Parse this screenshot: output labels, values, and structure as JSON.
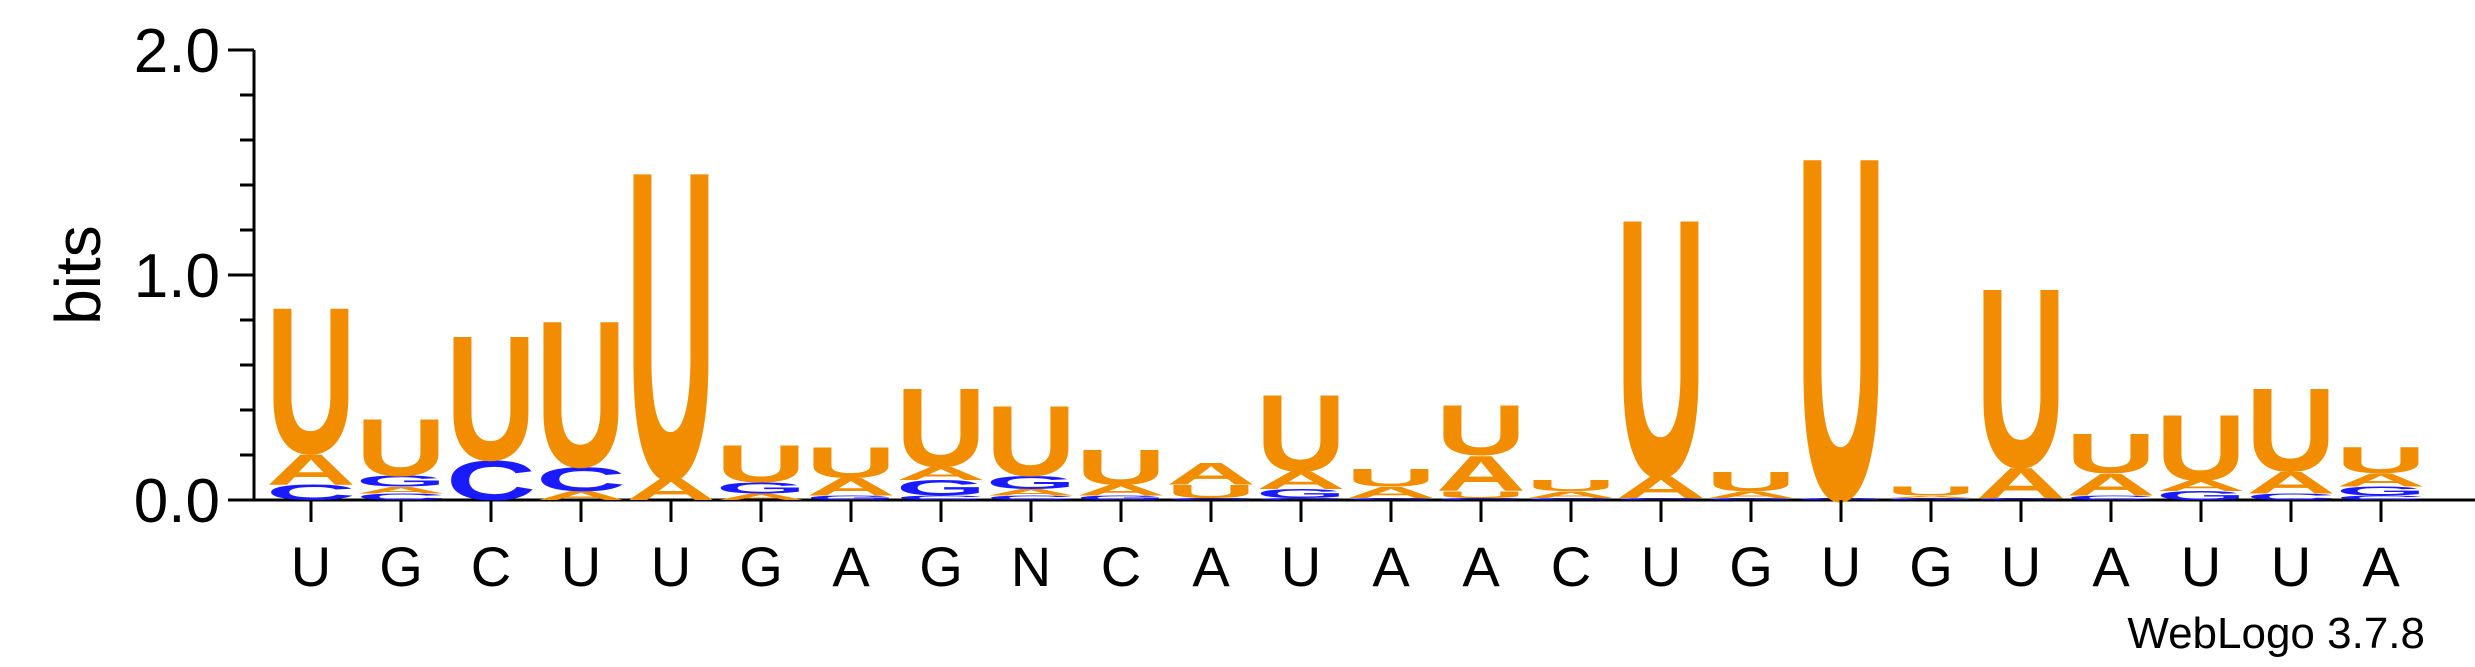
{
  "chart_data": {
    "type": "sequence-logo",
    "ylabel": "bits",
    "ylim": [
      0,
      2.0
    ],
    "yticks": [
      "0.0",
      "1.0",
      "2.0"
    ],
    "credit": "WebLogo 3.7.8",
    "colors": {
      "U": "#f28c00",
      "A": "#f28c00",
      "C": "#1a1aff",
      "G": "#1a1aff"
    },
    "positions": [
      {
        "label": "U",
        "stack": [
          {
            "letter": "C",
            "bits": 0.07
          },
          {
            "letter": "A",
            "bits": 0.14
          },
          {
            "letter": "U",
            "bits": 0.67
          }
        ]
      },
      {
        "label": "G",
        "stack": [
          {
            "letter": "C",
            "bits": 0.03
          },
          {
            "letter": "A",
            "bits": 0.03
          },
          {
            "letter": "G",
            "bits": 0.05
          },
          {
            "letter": "U",
            "bits": 0.26
          }
        ]
      },
      {
        "label": "C",
        "stack": [
          {
            "letter": "C",
            "bits": 0.18
          },
          {
            "letter": "U",
            "bits": 0.57
          }
        ]
      },
      {
        "label": "U",
        "stack": [
          {
            "letter": "A",
            "bits": 0.04
          },
          {
            "letter": "C",
            "bits": 0.11
          },
          {
            "letter": "U",
            "bits": 0.67
          }
        ]
      },
      {
        "label": "U",
        "stack": [
          {
            "letter": "A",
            "bits": 0.1
          },
          {
            "letter": "U",
            "bits": 1.41
          }
        ]
      },
      {
        "label": "G",
        "stack": [
          {
            "letter": "A",
            "bits": 0.03
          },
          {
            "letter": "G",
            "bits": 0.05
          },
          {
            "letter": "U",
            "bits": 0.17
          }
        ]
      },
      {
        "label": "A",
        "stack": [
          {
            "letter": "G",
            "bits": 0.02
          },
          {
            "letter": "A",
            "bits": 0.08
          },
          {
            "letter": "U",
            "bits": 0.14
          }
        ]
      },
      {
        "label": "G",
        "stack": [
          {
            "letter": "C",
            "bits": 0.02
          },
          {
            "letter": "G",
            "bits": 0.07
          },
          {
            "letter": "A",
            "bits": 0.06
          },
          {
            "letter": "U",
            "bits": 0.36
          }
        ]
      },
      {
        "label": "N",
        "stack": [
          {
            "letter": "C",
            "bits": 0.02
          },
          {
            "letter": "A",
            "bits": 0.03
          },
          {
            "letter": "G",
            "bits": 0.06
          },
          {
            "letter": "U",
            "bits": 0.32
          }
        ]
      },
      {
        "label": "C",
        "stack": [
          {
            "letter": "G",
            "bits": 0.02
          },
          {
            "letter": "A",
            "bits": 0.05
          },
          {
            "letter": "U",
            "bits": 0.16
          }
        ]
      },
      {
        "label": "A",
        "stack": [
          {
            "letter": "C",
            "bits": 0.01
          },
          {
            "letter": "U",
            "bits": 0.06
          },
          {
            "letter": "A",
            "bits": 0.1
          }
        ]
      },
      {
        "label": "U",
        "stack": [
          {
            "letter": "C",
            "bits": 0.01
          },
          {
            "letter": "G",
            "bits": 0.04
          },
          {
            "letter": "A",
            "bits": 0.08
          },
          {
            "letter": "U",
            "bits": 0.35
          }
        ]
      },
      {
        "label": "A",
        "stack": [
          {
            "letter": "C",
            "bits": 0.01
          },
          {
            "letter": "A",
            "bits": 0.05
          },
          {
            "letter": "U",
            "bits": 0.08
          }
        ]
      },
      {
        "label": "A",
        "stack": [
          {
            "letter": "C",
            "bits": 0.01
          },
          {
            "letter": "U",
            "bits": 0.03
          },
          {
            "letter": "A",
            "bits": 0.16
          },
          {
            "letter": "U",
            "bits": 0.23
          }
        ]
      },
      {
        "label": "C",
        "stack": [
          {
            "letter": "C",
            "bits": 0.01
          },
          {
            "letter": "A",
            "bits": 0.03
          },
          {
            "letter": "U",
            "bits": 0.05
          }
        ]
      },
      {
        "label": "U",
        "stack": [
          {
            "letter": "C",
            "bits": 0.01
          },
          {
            "letter": "A",
            "bits": 0.1
          },
          {
            "letter": "U",
            "bits": 1.18
          }
        ]
      },
      {
        "label": "G",
        "stack": [
          {
            "letter": "G",
            "bits": 0.01
          },
          {
            "letter": "A",
            "bits": 0.03
          },
          {
            "letter": "U",
            "bits": 0.09
          }
        ]
      },
      {
        "label": "U",
        "stack": [
          {
            "letter": "G",
            "bits": 0.01
          },
          {
            "letter": "U",
            "bits": 1.57
          }
        ]
      },
      {
        "label": "G",
        "stack": [
          {
            "letter": "G",
            "bits": 0.01
          },
          {
            "letter": "A",
            "bits": 0.01
          },
          {
            "letter": "U",
            "bits": 0.04
          }
        ]
      },
      {
        "label": "U",
        "stack": [
          {
            "letter": "C",
            "bits": 0.01
          },
          {
            "letter": "A",
            "bits": 0.14
          },
          {
            "letter": "U",
            "bits": 0.82
          }
        ]
      },
      {
        "label": "A",
        "stack": [
          {
            "letter": "C",
            "bits": 0.02
          },
          {
            "letter": "A",
            "bits": 0.1
          },
          {
            "letter": "U",
            "bits": 0.18
          }
        ]
      },
      {
        "label": "U",
        "stack": [
          {
            "letter": "G",
            "bits": 0.04
          },
          {
            "letter": "A",
            "bits": 0.05
          },
          {
            "letter": "U",
            "bits": 0.3
          }
        ]
      },
      {
        "label": "U",
        "stack": [
          {
            "letter": "C",
            "bits": 0.03
          },
          {
            "letter": "A",
            "bits": 0.1
          },
          {
            "letter": "U",
            "bits": 0.38
          }
        ]
      },
      {
        "label": "A",
        "stack": [
          {
            "letter": "C",
            "bits": 0.02
          },
          {
            "letter": "G",
            "bits": 0.04
          },
          {
            "letter": "A",
            "bits": 0.06
          },
          {
            "letter": "U",
            "bits": 0.12
          }
        ]
      }
    ]
  }
}
